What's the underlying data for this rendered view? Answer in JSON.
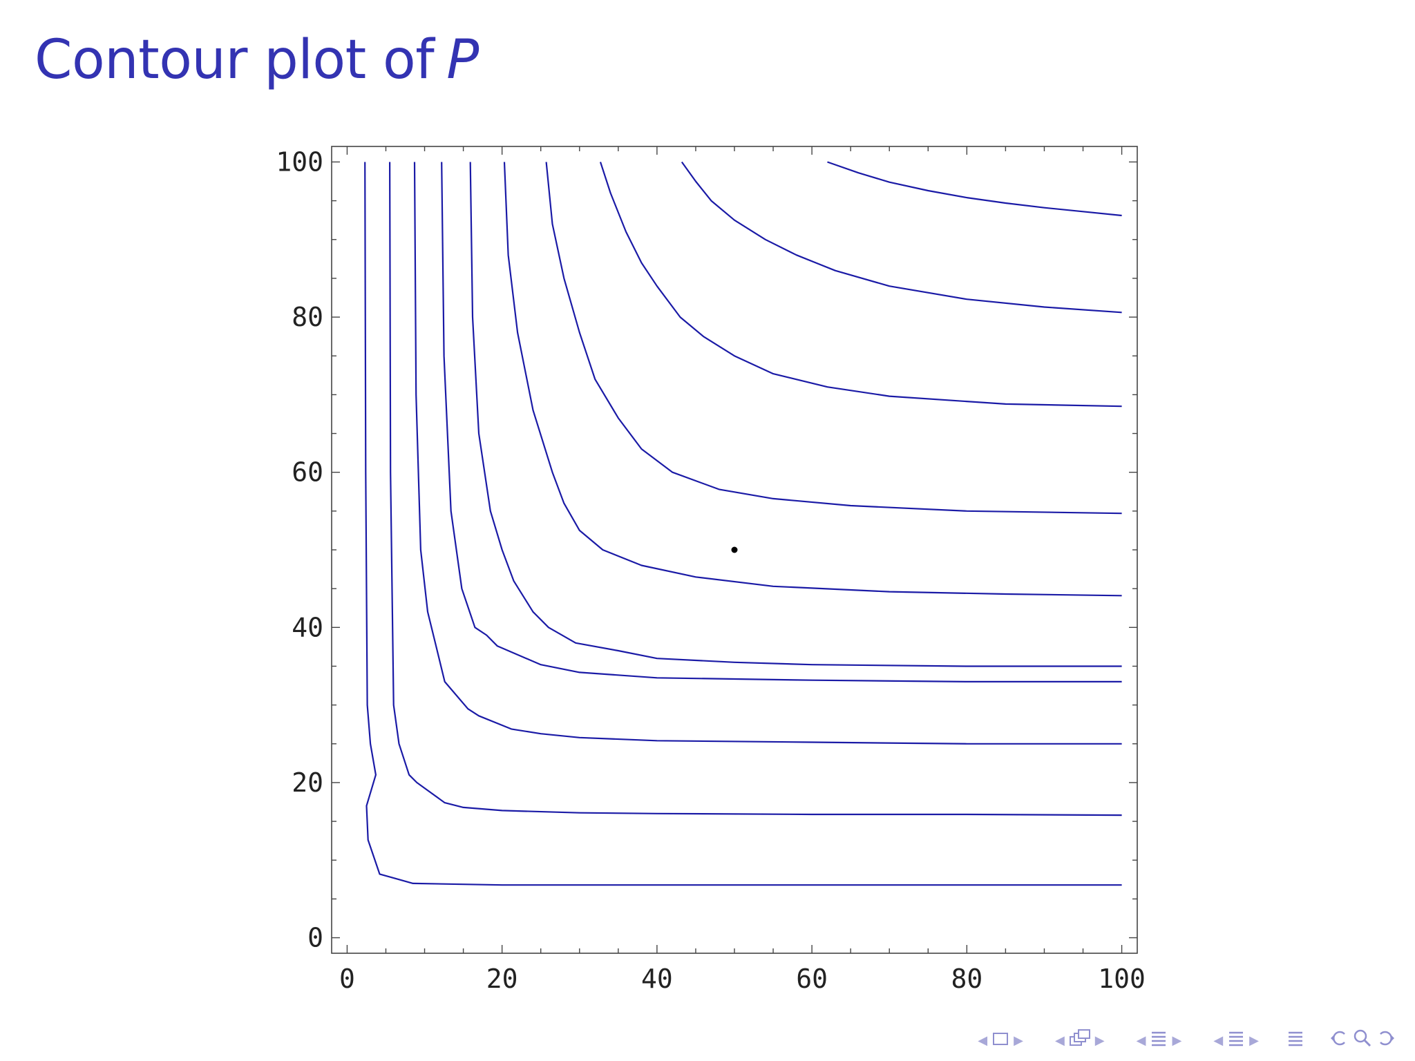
{
  "slide": {
    "title_text": "Contour plot of",
    "title_variable": "P"
  },
  "colors": {
    "title": "#3333b2",
    "contour": "#1a1aa6",
    "axes": "#444444",
    "point": "#000000"
  },
  "navigation": {
    "icons": [
      "frame-prev-icon",
      "frame-icon",
      "frame-next-icon",
      "subsection-icon",
      "section-icon",
      "slide-icon",
      "search-icon",
      "undo-icon"
    ],
    "left_arrow": "◀",
    "right_arrow": "▶"
  },
  "chart_data": {
    "type": "contour",
    "title": "",
    "xlabel": "",
    "ylabel": "",
    "xlim": [
      -2,
      102
    ],
    "ylim": [
      -2,
      102
    ],
    "xticks": [
      0,
      20,
      40,
      60,
      80,
      100
    ],
    "yticks": [
      0,
      20,
      40,
      60,
      80,
      100
    ],
    "grid": false,
    "marked_point": [
      50,
      50
    ],
    "series": [
      {
        "points": [
          [
            2.3,
            100
          ],
          [
            2.4,
            60
          ],
          [
            2.6,
            30
          ],
          [
            3.0,
            25
          ],
          [
            3.7,
            21
          ],
          [
            2.5,
            17
          ],
          [
            2.7,
            12.6
          ],
          [
            4.2,
            8.2
          ],
          [
            8.5,
            7
          ],
          [
            20,
            6.8
          ],
          [
            40,
            6.8
          ],
          [
            60,
            6.8
          ],
          [
            80,
            6.8
          ],
          [
            100,
            6.8
          ]
        ]
      },
      {
        "points": [
          [
            5.5,
            100
          ],
          [
            5.6,
            60
          ],
          [
            6.0,
            30
          ],
          [
            6.7,
            25
          ],
          [
            8.0,
            21
          ],
          [
            9.0,
            20
          ],
          [
            12.6,
            17.4
          ],
          [
            15,
            16.8
          ],
          [
            20,
            16.4
          ],
          [
            30,
            16.1
          ],
          [
            40,
            16.0
          ],
          [
            60,
            15.9
          ],
          [
            80,
            15.9
          ],
          [
            100,
            15.8
          ]
        ]
      },
      {
        "points": [
          [
            8.7,
            100
          ],
          [
            8.9,
            70
          ],
          [
            9.5,
            50
          ],
          [
            10.4,
            42
          ],
          [
            11.5,
            37.5
          ],
          [
            12.6,
            33
          ],
          [
            15.6,
            29.5
          ],
          [
            17,
            28.6
          ],
          [
            21.2,
            26.9
          ],
          [
            25,
            26.3
          ],
          [
            30,
            25.8
          ],
          [
            40,
            25.4
          ],
          [
            60,
            25.2
          ],
          [
            80,
            25.0
          ],
          [
            100,
            25.0
          ]
        ]
      },
      {
        "points": [
          [
            12.2,
            100
          ],
          [
            12.5,
            75
          ],
          [
            13.4,
            55
          ],
          [
            14.8,
            45
          ],
          [
            16.5,
            40
          ],
          [
            18,
            39
          ],
          [
            19.4,
            37.6
          ],
          [
            25,
            35.2
          ],
          [
            30,
            34.2
          ],
          [
            40,
            33.5
          ],
          [
            60,
            33.2
          ],
          [
            80,
            33.0
          ],
          [
            100,
            33.0
          ]
        ]
      },
      {
        "points": [
          [
            15.9,
            100
          ],
          [
            16.2,
            80
          ],
          [
            17.0,
            65
          ],
          [
            18.5,
            55
          ],
          [
            20,
            50
          ],
          [
            21.5,
            46
          ],
          [
            24,
            42
          ],
          [
            26,
            40
          ],
          [
            29.5,
            38
          ],
          [
            35,
            37
          ],
          [
            40,
            36
          ],
          [
            50,
            35.5
          ],
          [
            60,
            35.2
          ],
          [
            80,
            35
          ],
          [
            100,
            35
          ]
        ]
      },
      {
        "points": [
          [
            20.3,
            100
          ],
          [
            20.8,
            88
          ],
          [
            22,
            78
          ],
          [
            24,
            68
          ],
          [
            26.5,
            60
          ],
          [
            28,
            56
          ],
          [
            30,
            52.5
          ],
          [
            33,
            50
          ],
          [
            38,
            48
          ],
          [
            45,
            46.5
          ],
          [
            55,
            45.3
          ],
          [
            70,
            44.6
          ],
          [
            85,
            44.3
          ],
          [
            100,
            44.1
          ]
        ]
      },
      {
        "points": [
          [
            25.7,
            100
          ],
          [
            26.5,
            92
          ],
          [
            28,
            85
          ],
          [
            30,
            78
          ],
          [
            32,
            72
          ],
          [
            35,
            67
          ],
          [
            38,
            63
          ],
          [
            42,
            60
          ],
          [
            48,
            57.8
          ],
          [
            55,
            56.6
          ],
          [
            65,
            55.7
          ],
          [
            80,
            55
          ],
          [
            100,
            54.7
          ]
        ]
      },
      {
        "points": [
          [
            32.7,
            100
          ],
          [
            34,
            96
          ],
          [
            36,
            91
          ],
          [
            38,
            87
          ],
          [
            40,
            84
          ],
          [
            43,
            80
          ],
          [
            46,
            77.5
          ],
          [
            50,
            75
          ],
          [
            55,
            72.7
          ],
          [
            62,
            71
          ],
          [
            70,
            69.8
          ],
          [
            85,
            68.8
          ],
          [
            100,
            68.5
          ]
        ]
      },
      {
        "points": [
          [
            43.2,
            100
          ],
          [
            45,
            97.5
          ],
          [
            47,
            95
          ],
          [
            50,
            92.5
          ],
          [
            54,
            90
          ],
          [
            58,
            88
          ],
          [
            63,
            86
          ],
          [
            70,
            84
          ],
          [
            80,
            82.3
          ],
          [
            90,
            81.3
          ],
          [
            100,
            80.6
          ]
        ]
      },
      {
        "points": [
          [
            62,
            100
          ],
          [
            66,
            98.6
          ],
          [
            70,
            97.4
          ],
          [
            75,
            96.3
          ],
          [
            80,
            95.4
          ],
          [
            85,
            94.7
          ],
          [
            90,
            94.1
          ],
          [
            95,
            93.6
          ],
          [
            100,
            93.1
          ]
        ]
      }
    ]
  }
}
